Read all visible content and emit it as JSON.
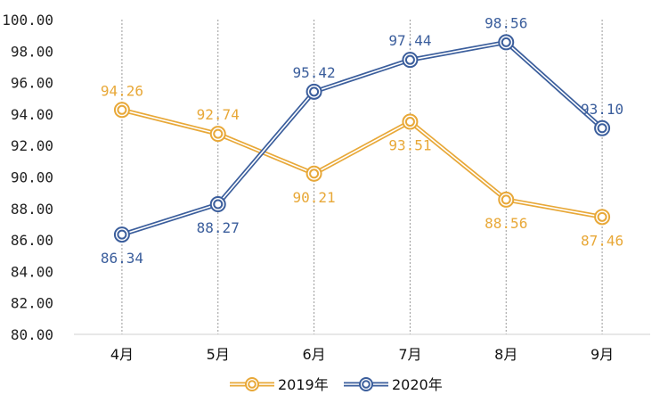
{
  "chart_data": {
    "type": "line",
    "categories": [
      "4月",
      "5月",
      "6月",
      "7月",
      "8月",
      "9月"
    ],
    "series": [
      {
        "name": "2019年",
        "color": "#E8A838",
        "values": [
          94.26,
          92.74,
          90.21,
          93.51,
          88.56,
          87.46
        ],
        "labels": [
          "94.26",
          "92.74",
          "90.21",
          "93.51",
          "88.56",
          "87.46"
        ]
      },
      {
        "name": "2020年",
        "color": "#3B5E9C",
        "values": [
          86.34,
          88.27,
          95.42,
          97.44,
          98.56,
          93.1
        ],
        "labels": [
          "86.34",
          "88.27",
          "95.42",
          "97.44",
          "98.56",
          "93.10"
        ]
      }
    ],
    "ylim": [
      80,
      100
    ],
    "yticks": [
      "80.00",
      "82.00",
      "84.00",
      "86.00",
      "88.00",
      "90.00",
      "92.00",
      "94.00",
      "96.00",
      "98.00",
      "100.00"
    ],
    "grid": "vertical dotted lines at categories",
    "legend_position": "bottom"
  }
}
